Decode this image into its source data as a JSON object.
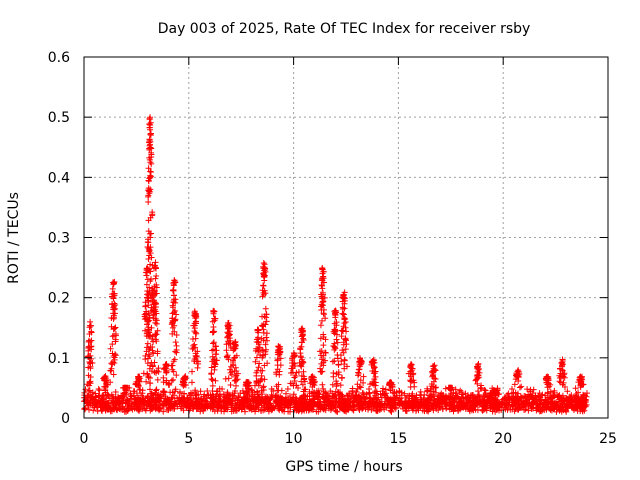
{
  "chart_data": {
    "type": "scatter",
    "title": "Day 003 of 2025, Rate Of TEC Index for receiver rsby",
    "xlabel": "GPS time / hours",
    "ylabel": "ROTI / TECUs",
    "xlim": [
      0,
      25
    ],
    "ylim": [
      0,
      0.6
    ],
    "x_ticks": [
      0,
      5,
      10,
      15,
      20,
      25
    ],
    "x_tick_labels": [
      "0",
      "5",
      "10",
      "15",
      "20",
      "25"
    ],
    "y_ticks": [
      0,
      0.1,
      0.2,
      0.3,
      0.4,
      0.5,
      0.6
    ],
    "y_tick_labels": [
      "0",
      "0.1",
      "0.2",
      "0.3",
      "0.4",
      "0.5",
      "0.6"
    ],
    "grid": true,
    "marker": "+",
    "color": "#ff0000",
    "series": [
      {
        "name": "ROTI",
        "baseline": {
          "x_start": 0,
          "x_end": 24,
          "low": 0.01,
          "high": 0.05
        },
        "peaks": [
          {
            "x": 0.3,
            "y": 0.16
          },
          {
            "x": 1.0,
            "y": 0.07
          },
          {
            "x": 1.4,
            "y": 0.23
          },
          {
            "x": 2.0,
            "y": 0.05
          },
          {
            "x": 2.6,
            "y": 0.07
          },
          {
            "x": 3.0,
            "y": 0.25
          },
          {
            "x": 3.15,
            "y": 0.5
          },
          {
            "x": 3.4,
            "y": 0.26
          },
          {
            "x": 3.9,
            "y": 0.09
          },
          {
            "x": 4.3,
            "y": 0.23
          },
          {
            "x": 4.8,
            "y": 0.07
          },
          {
            "x": 5.3,
            "y": 0.18
          },
          {
            "x": 6.2,
            "y": 0.18
          },
          {
            "x": 6.9,
            "y": 0.16
          },
          {
            "x": 7.2,
            "y": 0.13
          },
          {
            "x": 7.8,
            "y": 0.06
          },
          {
            "x": 8.3,
            "y": 0.15
          },
          {
            "x": 8.6,
            "y": 0.26
          },
          {
            "x": 9.3,
            "y": 0.12
          },
          {
            "x": 10.0,
            "y": 0.11
          },
          {
            "x": 10.4,
            "y": 0.15
          },
          {
            "x": 10.9,
            "y": 0.07
          },
          {
            "x": 11.4,
            "y": 0.25
          },
          {
            "x": 12.0,
            "y": 0.18
          },
          {
            "x": 12.4,
            "y": 0.21
          },
          {
            "x": 13.2,
            "y": 0.1
          },
          {
            "x": 13.8,
            "y": 0.1
          },
          {
            "x": 14.6,
            "y": 0.06
          },
          {
            "x": 15.6,
            "y": 0.09
          },
          {
            "x": 16.7,
            "y": 0.09
          },
          {
            "x": 17.5,
            "y": 0.05
          },
          {
            "x": 18.8,
            "y": 0.09
          },
          {
            "x": 19.6,
            "y": 0.04
          },
          {
            "x": 20.7,
            "y": 0.08
          },
          {
            "x": 22.1,
            "y": 0.07
          },
          {
            "x": 22.8,
            "y": 0.1
          },
          {
            "x": 23.7,
            "y": 0.07
          }
        ]
      }
    ]
  }
}
